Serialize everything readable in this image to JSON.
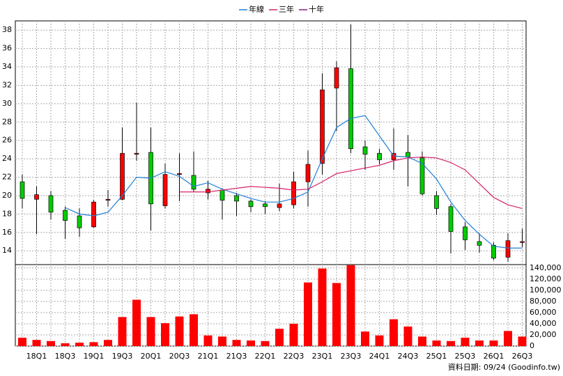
{
  "chart_data": {
    "type": "candlestick",
    "categories": [
      null,
      "18Q1",
      null,
      "18Q3",
      null,
      "19Q1",
      null,
      "19Q3",
      null,
      "20Q1",
      null,
      "20Q3",
      null,
      "21Q1",
      null,
      "21Q3",
      null,
      "22Q1",
      null,
      "22Q3",
      null,
      "23Q1",
      null,
      "23Q3",
      null,
      "24Q1",
      null,
      "24Q3",
      null,
      "25Q1",
      null,
      "25Q3",
      null,
      "26Q1",
      null,
      "26Q3"
    ],
    "open": [
      21.5,
      19.6,
      20.0,
      18.4,
      17.8,
      16.6,
      19.5,
      19.6,
      24.5,
      24.7,
      18.9,
      22.3,
      22.2,
      20.3,
      20.6,
      20.0,
      19.4,
      19.1,
      18.7,
      19.0,
      21.5,
      23.5,
      31.7,
      33.8,
      25.3,
      24.6,
      23.9,
      24.7,
      24.1,
      20.0,
      18.8,
      16.6,
      15.0,
      14.6,
      13.3,
      14.9
    ],
    "high": [
      22.3,
      21.0,
      20.5,
      18.8,
      18.6,
      19.5,
      20.6,
      27.4,
      30.1,
      27.4,
      23.5,
      24.6,
      24.8,
      21.6,
      20.8,
      20.3,
      19.6,
      19.4,
      21.3,
      22.6,
      24.9,
      33.3,
      34.6,
      38.6,
      26.0,
      25.1,
      27.3,
      26.6,
      24.8,
      20.5,
      19.1,
      17.1,
      15.9,
      14.9,
      15.9,
      16.4
    ],
    "low": [
      18.6,
      15.8,
      17.4,
      15.3,
      15.5,
      16.5,
      18.8,
      19.5,
      23.8,
      16.2,
      18.6,
      19.4,
      20.4,
      19.6,
      17.4,
      17.8,
      18.2,
      18.0,
      18.3,
      18.6,
      18.8,
      22.3,
      27.0,
      24.6,
      22.8,
      23.4,
      22.8,
      21.0,
      20.0,
      17.9,
      13.7,
      14.1,
      13.8,
      13.0,
      12.8,
      14.4
    ],
    "close": [
      19.7,
      20.1,
      18.2,
      17.3,
      16.5,
      19.3,
      19.6,
      24.6,
      24.6,
      19.1,
      22.3,
      22.4,
      20.7,
      20.7,
      19.5,
      19.4,
      18.8,
      18.8,
      19.1,
      21.5,
      23.4,
      31.5,
      33.9,
      25.1,
      24.5,
      23.9,
      24.6,
      24.2,
      20.2,
      18.6,
      16.1,
      15.2,
      14.6,
      13.2,
      15.1,
      15.0
    ],
    "up_color": "#ff0000",
    "down_color": "#00cc00",
    "ylim": [
      12.5,
      39
    ],
    "yticks": [
      14,
      16,
      18,
      20,
      22,
      24,
      26,
      28,
      30,
      32,
      34,
      36,
      38
    ],
    "grid": true,
    "series": [
      {
        "name": "年線",
        "color": "#1f7fd6",
        "values": [
          null,
          null,
          null,
          18.7,
          18.0,
          17.8,
          18.2,
          20.0,
          22.0,
          21.9,
          22.6,
          22.1,
          21.0,
          21.4,
          20.7,
          20.2,
          19.7,
          19.3,
          19.3,
          19.7,
          20.4,
          24.0,
          27.4,
          28.4,
          28.7,
          26.5,
          24.3,
          24.2,
          23.5,
          21.8,
          19.3,
          17.3,
          15.8,
          14.5,
          14.3,
          14.3
        ]
      },
      {
        "name": "三年",
        "color": "#d6226a",
        "values": [
          null,
          null,
          null,
          null,
          null,
          null,
          null,
          null,
          null,
          null,
          null,
          20.4,
          20.4,
          20.4,
          20.6,
          20.8,
          21.0,
          20.9,
          20.8,
          20.6,
          20.7,
          21.5,
          22.4,
          22.7,
          23.0,
          23.3,
          23.8,
          24.1,
          24.2,
          24.1,
          23.6,
          22.8,
          21.3,
          19.8,
          19.0,
          18.6
        ]
      },
      {
        "name": "十年",
        "color": "#8b1a8b",
        "values": [
          null,
          null,
          null,
          null,
          null,
          null,
          null,
          null,
          null,
          null,
          null,
          null,
          null,
          null,
          null,
          null,
          null,
          null,
          null,
          null,
          null,
          null,
          null,
          null,
          null,
          null,
          null,
          null,
          null,
          null,
          null,
          null,
          null,
          null,
          null,
          null
        ]
      }
    ],
    "volume": {
      "color": "#ff0000",
      "values": [
        15000,
        11000,
        9000,
        5000,
        6000,
        7000,
        11000,
        52000,
        83000,
        52000,
        41000,
        53000,
        57000,
        19000,
        17000,
        11000,
        10000,
        9000,
        31000,
        40000,
        114000,
        139000,
        113000,
        145000,
        26000,
        19000,
        48000,
        35000,
        17000,
        10000,
        9000,
        15000,
        10000,
        10000,
        27000,
        17000
      ],
      "ylim": [
        0,
        146000
      ],
      "yticks": [
        0,
        {
          "value": 20000,
          "label": "20,000"
        },
        {
          "value": 40000,
          "label": "40,000"
        },
        {
          "value": 60000,
          "label": "60,000"
        },
        {
          "value": 80000,
          "label": "80,000"
        },
        {
          "value": 100000,
          "label": "100,000"
        },
        {
          "value": 120000,
          "label": "120,000"
        },
        {
          "value": 140000,
          "label": "140,000"
        }
      ]
    },
    "footnote": "資料日期: 09/24 (Goodinfo.tw)"
  }
}
